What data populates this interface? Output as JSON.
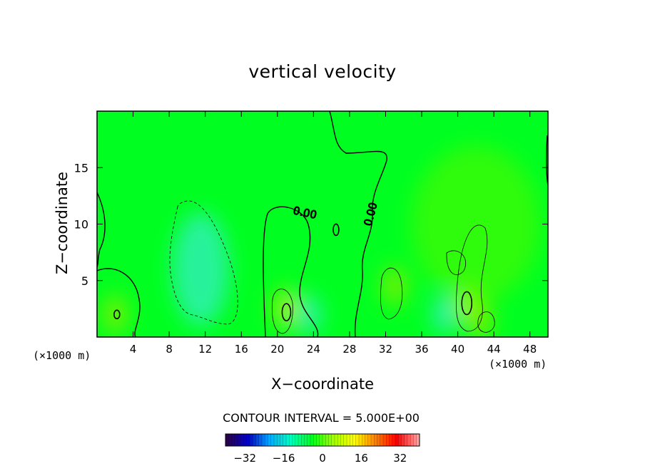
{
  "chart_data": {
    "type": "heatmap",
    "title": "vertical velocity",
    "xlabel": "X−coordinate",
    "ylabel": "Z−coordinate",
    "x_unit_label": "(×1000 m)",
    "y_unit_label": "(×1000 m)",
    "xlim": [
      0,
      50
    ],
    "ylim": [
      0,
      20
    ],
    "x_ticks": [
      4,
      8,
      12,
      16,
      20,
      24,
      28,
      32,
      36,
      40,
      44,
      48
    ],
    "y_ticks": [
      5,
      10,
      15
    ],
    "contour_interval_text": "CONTOUR INTERVAL = 5.000E+00",
    "contour_label": "0.00",
    "colorbar": {
      "ticks": [
        -32,
        -16,
        0,
        16,
        32
      ],
      "range": [
        -40,
        40
      ],
      "colormap": [
        "#2a0050",
        "#0000c8",
        "#00a8ff",
        "#00ffc0",
        "#00ff20",
        "#a0ff00",
        "#ffff00",
        "#ff8000",
        "#ff0000",
        "#ffa0a0"
      ]
    },
    "field_features": [
      {
        "kind": "downdraft",
        "x": 11.5,
        "z": 6.0,
        "value": -5
      },
      {
        "kind": "updraft",
        "x": 21.0,
        "z": 2.5,
        "value": 10
      },
      {
        "kind": "updraft",
        "x": 33.0,
        "z": 4.5,
        "value": 5
      },
      {
        "kind": "updraft",
        "x": 41.0,
        "z": 3.0,
        "value": 10
      },
      {
        "kind": "updraft",
        "x": 42.5,
        "z": 1.5,
        "value": 5
      },
      {
        "kind": "updraft",
        "x": 2.0,
        "z": 2.0,
        "value": 5
      },
      {
        "kind": "downdraft",
        "x": 38.5,
        "z": 2.0,
        "value": -5
      },
      {
        "kind": "downdraft",
        "x": 23.5,
        "z": 2.0,
        "value": -5
      }
    ],
    "grid": false
  },
  "colors": {
    "background": "#00ff20",
    "axis": "#000000"
  }
}
